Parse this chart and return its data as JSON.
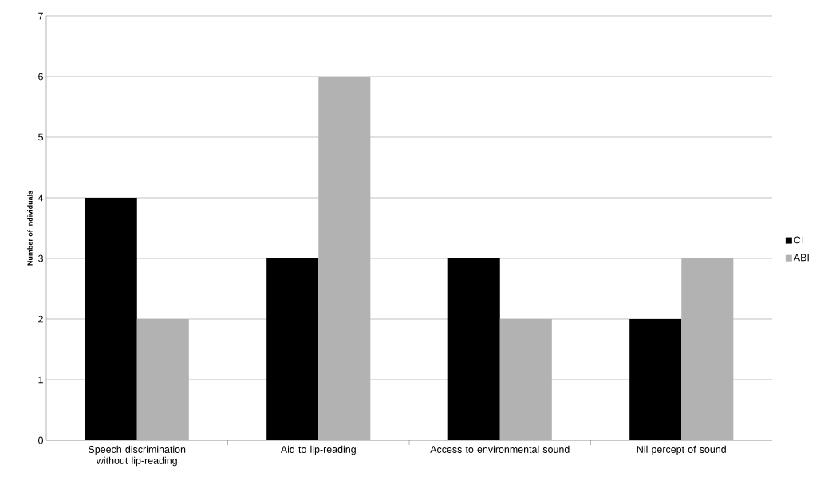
{
  "chart_data": {
    "type": "bar",
    "ylabel": "Number of individuals",
    "categories": [
      "Speech discrimination without lip-reading",
      "Aid to lip-reading",
      "Access to environmental sound",
      "Nil percept of sound"
    ],
    "series": [
      {
        "name": "CI",
        "color": "#000000",
        "values": [
          4,
          3,
          3,
          2
        ]
      },
      {
        "name": "ABI",
        "color": "#b2b2b2",
        "values": [
          2,
          6,
          2,
          3
        ]
      }
    ],
    "ylim": [
      0,
      7
    ],
    "yticks": [
      0,
      1,
      2,
      3,
      4,
      5,
      6,
      7
    ],
    "grid": "y",
    "legend": "right"
  }
}
